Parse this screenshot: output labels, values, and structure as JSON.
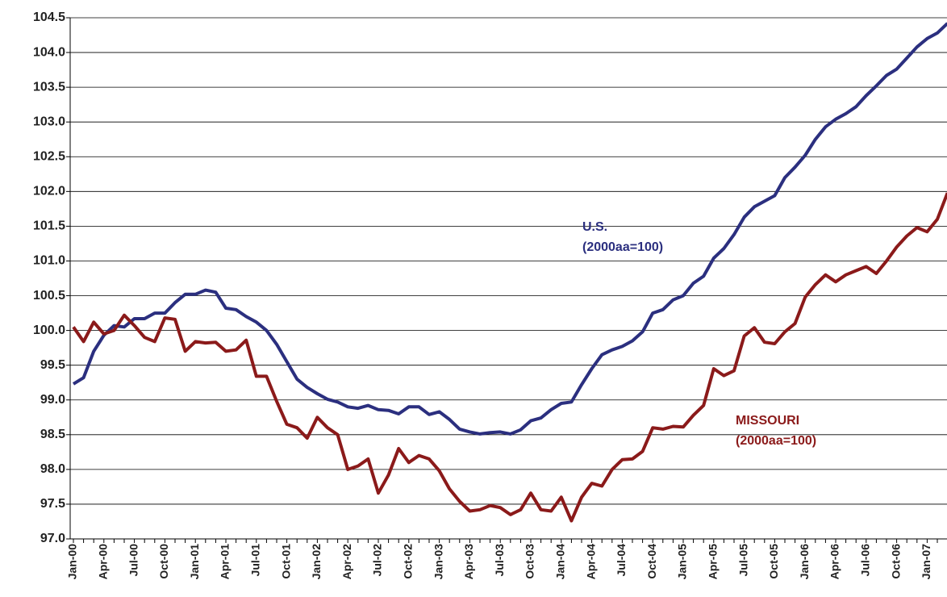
{
  "chart_data": {
    "type": "line",
    "categories": [
      "Jan-00",
      null,
      null,
      "Apr-00",
      null,
      null,
      "Jul-00",
      null,
      null,
      "Oct-00",
      null,
      null,
      "Jan-01",
      null,
      null,
      "Apr-01",
      null,
      null,
      "Jul-01",
      null,
      null,
      "Oct-01",
      null,
      null,
      "Jan-02",
      null,
      null,
      "Apr-02",
      null,
      null,
      "Jul-02",
      null,
      null,
      "Oct-02",
      null,
      null,
      "Jan-03",
      null,
      null,
      "Apr-03",
      null,
      null,
      "Jul-03",
      null,
      null,
      "Oct-03",
      null,
      null,
      "Jan-04",
      null,
      null,
      "Apr-04",
      null,
      null,
      "Jul-04",
      null,
      null,
      "Oct-04",
      null,
      null,
      "Jan-05",
      null,
      null,
      "Apr-05",
      null,
      null,
      "Jul-05",
      null,
      null,
      "Oct-05",
      null,
      null,
      "Jan-06",
      null,
      null,
      "Apr-06",
      null,
      null,
      "Jul-06",
      null,
      null,
      "Oct-06",
      null,
      null,
      "Jan-07",
      null,
      null
    ],
    "series": [
      {
        "name": "U.S.",
        "note": "(2000aa=100)",
        "color": "#2b2f7f",
        "values": [
          99.23,
          99.32,
          99.7,
          99.93,
          100.07,
          100.05,
          100.17,
          100.17,
          100.25,
          100.25,
          100.4,
          100.52,
          100.52,
          100.58,
          100.55,
          100.32,
          100.3,
          100.2,
          100.12,
          100.0,
          99.8,
          99.55,
          99.3,
          99.18,
          99.09,
          99.01,
          98.97,
          98.9,
          98.88,
          98.92,
          98.86,
          98.85,
          98.8,
          98.9,
          98.9,
          98.79,
          98.83,
          98.72,
          98.58,
          98.54,
          98.51,
          98.53,
          98.54,
          98.51,
          98.57,
          98.7,
          98.74,
          98.86,
          98.95,
          98.97,
          99.22,
          99.45,
          99.65,
          99.72,
          99.77,
          99.85,
          99.98,
          100.25,
          100.3,
          100.44,
          100.5,
          100.68,
          100.78,
          101.04,
          101.18,
          101.38,
          101.63,
          101.78,
          101.86,
          101.94,
          102.2,
          102.35,
          102.52,
          102.75,
          102.93,
          103.04,
          103.12,
          103.22,
          103.38,
          103.52,
          103.67,
          103.76,
          103.92,
          104.08,
          104.2,
          104.28,
          104.42
        ]
      },
      {
        "name": "MISSOURI",
        "note": "(2000aa=100)",
        "color": "#8b1a1a",
        "values": [
          100.05,
          99.84,
          100.12,
          99.95,
          100.0,
          100.22,
          100.07,
          99.9,
          99.84,
          100.18,
          100.16,
          99.7,
          99.84,
          99.82,
          99.83,
          99.7,
          99.72,
          99.86,
          99.34,
          99.34,
          98.98,
          98.65,
          98.6,
          98.45,
          98.75,
          98.6,
          98.5,
          98.0,
          98.05,
          98.15,
          97.66,
          97.92,
          98.3,
          98.1,
          98.2,
          98.15,
          97.98,
          97.72,
          97.54,
          97.4,
          97.42,
          97.48,
          97.45,
          97.35,
          97.42,
          97.66,
          97.42,
          97.4,
          97.6,
          97.26,
          97.6,
          97.8,
          97.76,
          98.0,
          98.14,
          98.15,
          98.26,
          98.6,
          98.58,
          98.62,
          98.61,
          98.78,
          98.92,
          99.45,
          99.35,
          99.42,
          99.92,
          100.04,
          99.83,
          99.81,
          99.98,
          100.1,
          100.48,
          100.66,
          100.8,
          100.7,
          100.8,
          100.86,
          100.92,
          100.82,
          101.0,
          101.2,
          101.36,
          101.48,
          101.42,
          101.6,
          101.98
        ]
      }
    ],
    "ylim": [
      97.0,
      104.5
    ],
    "yticks": [
      {
        "value": 97,
        "label": "97.0"
      },
      97.5,
      {
        "value": 98,
        "label": "98.0"
      },
      98.5,
      {
        "value": 99,
        "label": "99.0"
      },
      99.5,
      {
        "value": 100,
        "label": "100.0"
      },
      100.5,
      {
        "value": 101,
        "label": "101.0"
      },
      101.5,
      {
        "value": 102,
        "label": "102.0"
      },
      102.5,
      {
        "value": 103,
        "label": "103.0"
      },
      103.5,
      {
        "value": 104,
        "label": "104.0"
      },
      104.5
    ],
    "grid": true
  }
}
